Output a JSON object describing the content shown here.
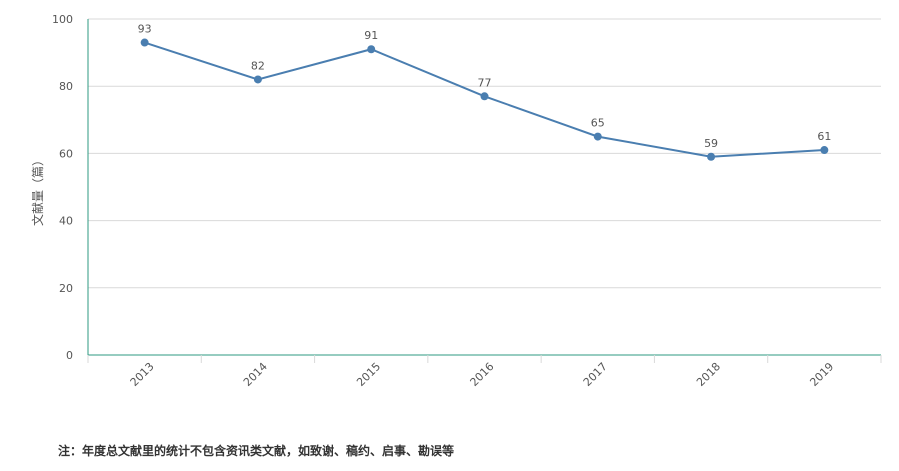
{
  "chart_data": {
    "type": "line",
    "categories": [
      "2013",
      "2014",
      "2015",
      "2016",
      "2017",
      "2018",
      "2019"
    ],
    "series": [
      {
        "values": [
          93,
          82,
          91,
          77,
          65,
          59,
          61
        ]
      }
    ],
    "ylabel": "文献量（篇）",
    "ylim": [
      0,
      100
    ],
    "yticks": [
      "0",
      "20",
      "40",
      "60",
      "80",
      "100"
    ],
    "grid": true,
    "colors": {
      "line": "#4a7eb0",
      "axis": "#2e9a82",
      "grid": "#d9d9d9",
      "text": "#555555"
    }
  },
  "footnote": "注：年度总文献里的统计不包含资讯类文献，如致谢、稿约、启事、勘误等"
}
